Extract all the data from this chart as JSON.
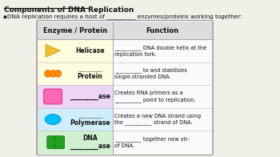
{
  "title": "Components of DNA Replication",
  "bullet": "▪DNA replication requires a host of __________ enzymes/proteins working together:",
  "col1_header": "Enzyme / Protein",
  "col2_header": "Function",
  "rows": [
    {
      "shape": "triangle",
      "shape_color": "#F0C030",
      "bg_color": "#FFFDE0",
      "enzyme": "Helicase",
      "enzyme_prefix": "",
      "function": "__________ DNA double helix at the\nreplication fork."
    },
    {
      "shape": "circles",
      "shape_color": "#FF8C00",
      "bg_color": "#FFFDE0",
      "enzyme": "Protein",
      "enzyme_prefix": "__________",
      "function": "__________ to and stabilizes\nsingle-stranded DNA."
    },
    {
      "shape": "rounded_rect",
      "shape_color": "#FF69B4",
      "bg_color": "#EDD5F5",
      "enzyme": "_________ase",
      "enzyme_prefix": "",
      "function": "Creates RNA primers as a\n__________ point to replication."
    },
    {
      "shape": "ellipse",
      "shape_color": "#00BFFF",
      "bg_color": "#D0EEFA",
      "enzyme": "Polymerase",
      "enzyme_prefix": "__________",
      "function": "Creates a new DNA strand using\nthe __________ strand of DNA."
    },
    {
      "shape": "dumbbell",
      "shape_color": "#22A022",
      "bg_color": "#D0F0D0",
      "enzyme": "DNA\n_________ase",
      "enzyme_prefix": "",
      "function": "__________ together new str-\nof DNA."
    }
  ],
  "fig_bg": "#F0EFE8",
  "text_color": "#111111",
  "header_bg": "#DDDDDD",
  "table_border": "#999999",
  "row_divider": "#BBBBBB"
}
